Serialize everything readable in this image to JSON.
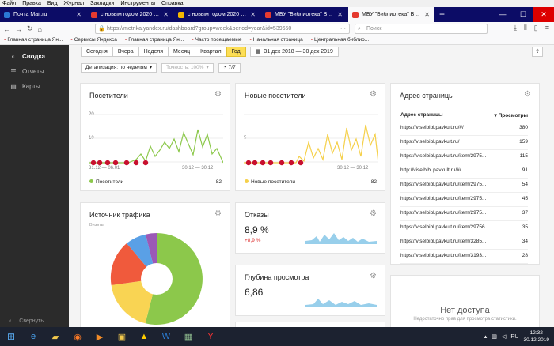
{
  "menubar": [
    "Файл",
    "Правка",
    "Вид",
    "Журнал",
    "Закладки",
    "Инструменты",
    "Справка"
  ],
  "tabs": [
    {
      "label": "Почта Mail.ru",
      "color": "#2a79d6"
    },
    {
      "label": "с новым годом 2020 картинк",
      "color": "#e53a2f"
    },
    {
      "label": "с новым годом 2020 картинк",
      "color": "#f5b800"
    },
    {
      "label": "МБУ \"Библиотека\" Веселовс",
      "color": "#e53a2f"
    },
    {
      "label": "МБУ \"Библиотека\" Веселовс",
      "color": "#e53a2f",
      "active": true
    }
  ],
  "url": "https://metrika.yandex.ru/dashboard?group=week&period=year&id=539650",
  "search_placeholder": "Поиск",
  "bookmarks": [
    "Главная страница Ян...",
    "Сервисы Яндекса",
    "Главная страница Ян...",
    "Часто посещаемые",
    "Начальная страница",
    "Центральная библио..."
  ],
  "sidebar": {
    "items": [
      {
        "label": "Сводка",
        "icon": "gauge-icon",
        "active": true
      },
      {
        "label": "Отчеты",
        "icon": "list-icon"
      },
      {
        "label": "Карты",
        "icon": "map-icon"
      }
    ],
    "collapse": "Свернуть"
  },
  "periods": [
    "Сегодня",
    "Вчера",
    "Неделя",
    "Месяц",
    "Квартал",
    "Год"
  ],
  "active_period": "Год",
  "date_range": "31 дек 2018 — 30 дек 2019",
  "filters": {
    "detail": "Детализация: по неделям",
    "accuracy": "Точность: 100%",
    "segments": "7/7"
  },
  "visitors": {
    "title": "Посетители",
    "legend": "Посетители",
    "total": "82",
    "y_ticks": [
      "20",
      "10"
    ],
    "x_ticks": [
      "31.12 — 06.01",
      "30.12 — 30.12"
    ],
    "color": "#8cc84b"
  },
  "new_visitors": {
    "title": "Новые посетители",
    "legend": "Новые посетители",
    "total": "82",
    "y_ticks": [
      "5"
    ],
    "x_ticks": [
      "30.12 — 30.12"
    ],
    "color": "#f5d04a"
  },
  "traffic": {
    "title": "Источник трафика",
    "subtitle": "Визиты"
  },
  "bounce": {
    "title": "Отказы",
    "value": "8,9 %",
    "delta": "+8,9 %"
  },
  "depth": {
    "title": "Глубина просмотра",
    "value": "6,86"
  },
  "address": {
    "title": "Адрес страницы",
    "col1": "Адрес страницы",
    "col2": "▾ Просмотры",
    "rows": [
      {
        "url": "https://viselbibl.pavkult.ru/#/",
        "views": "380"
      },
      {
        "url": "https://viselbibl.pavkult.ru/",
        "views": "159"
      },
      {
        "url": "https://viselbibl.pavkult.ru/item/2975...",
        "views": "115"
      },
      {
        "url": "http://viselbibl.pavkult.ru/#/",
        "views": "91"
      },
      {
        "url": "https://viselbibl.pavkult.ru/item/2975...",
        "views": "54"
      },
      {
        "url": "https://viselbibl.pavkult.ru/item/2975...",
        "views": "45"
      },
      {
        "url": "https://viselbibl.pavkult.ru/item/2975...",
        "views": "37"
      },
      {
        "url": "https://viselbibl.pavkult.ru/item/29756...",
        "views": "35"
      },
      {
        "url": "https://viselbibl.pavkult.ru/item/3285...",
        "views": "34"
      },
      {
        "url": "https://viselbibl.pavkult.ru/item/3193...",
        "views": "28"
      }
    ]
  },
  "noaccess": {
    "title": "Нет доступа",
    "subtitle": "Недостаточно прав для просмотра статистики."
  },
  "tray": {
    "lang": "RU",
    "time": "12:32",
    "date": "30.12.2019"
  }
}
